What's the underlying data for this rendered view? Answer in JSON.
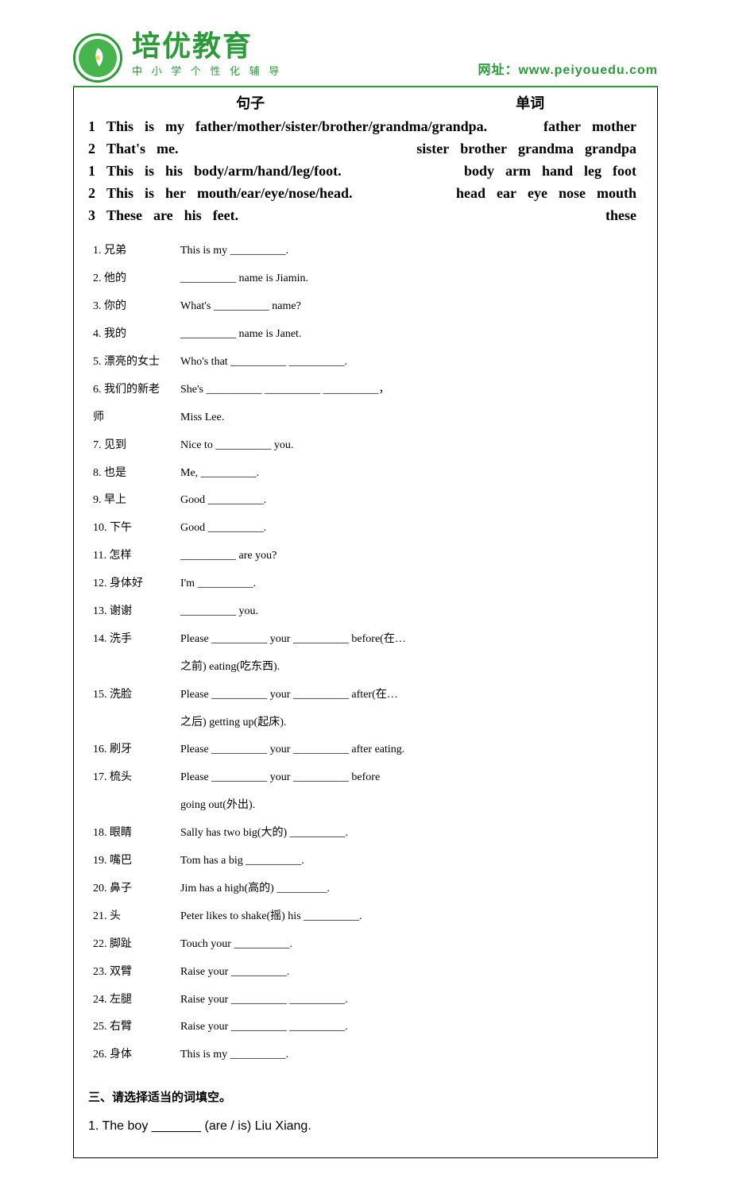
{
  "header": {
    "brand_name": "培优教育",
    "brand_sub": "中 小 学 个 性 化 辅 导",
    "url_label": "网址：",
    "url": "www.peiyouedu.com"
  },
  "columns": {
    "left": "句子",
    "right": "单词"
  },
  "sentences": [
    {
      "num": "1",
      "left": [
        "This",
        "is",
        "my",
        "father/mother/sister/brother/grandma/grandpa."
      ],
      "right": [
        "father",
        "mother"
      ]
    },
    {
      "num": "2",
      "left": [
        "That's",
        "me."
      ],
      "right": [
        "sister",
        "brother",
        "grandma",
        "grandpa"
      ]
    },
    {
      "num": "1",
      "left": [
        "This",
        "is",
        "his",
        "body/arm/hand/leg/foot."
      ],
      "right": [
        "body",
        "arm",
        "hand",
        "leg",
        "foot"
      ]
    },
    {
      "num": "2",
      "left": [
        "This",
        "is",
        "her",
        "mouth/ear/eye/nose/head."
      ],
      "right": [
        "head",
        "ear",
        "eye",
        "nose",
        "mouth"
      ]
    },
    {
      "num": "3",
      "left": [
        "These",
        "are",
        "his",
        "feet."
      ],
      "right": [
        "these"
      ]
    }
  ],
  "exercises": [
    {
      "n": "1.",
      "label": "兄弟",
      "text": "This is my __________."
    },
    {
      "n": "2.",
      "label": "他的",
      "text": "__________ name is Jiamin."
    },
    {
      "n": "3.",
      "label": "你的",
      "text": "What's __________ name?"
    },
    {
      "n": "4.",
      "label": "我的",
      "text": "__________ name is Janet."
    },
    {
      "n": "5.",
      "label": "漂亮的女士",
      "text": "Who's that __________  __________."
    },
    {
      "n": "6.",
      "label": "我们的新老",
      "text": "She's __________   __________   __________，",
      "cont_label": "师",
      "cont_text": "Miss Lee."
    },
    {
      "n": "7.",
      "label": "见到",
      "text": "Nice to __________ you."
    },
    {
      "n": "8.",
      "label": "也是",
      "text": "Me, __________."
    },
    {
      "n": "9.",
      "label": "早上",
      "text": "Good __________."
    },
    {
      "n": "10.",
      "label": "下午",
      "text": "Good __________."
    },
    {
      "n": "11.",
      "label": "怎样",
      "text": "__________ are you?"
    },
    {
      "n": "12.",
      "label": "身体好",
      "text": "I'm __________."
    },
    {
      "n": "13.",
      "label": "谢谢",
      "text": "__________ you."
    },
    {
      "n": "14.",
      "label": "洗手",
      "text": "Please __________ your __________ before(在…",
      "cont_label": "",
      "cont_text": "之前) eating(吃东西)."
    },
    {
      "n": "15.",
      "label": "洗脸",
      "text": "Please __________ your __________ after(在…",
      "cont_label": "",
      "cont_text": "之后) getting up(起床)."
    },
    {
      "n": "16.",
      "label": "刷牙",
      "text": "Please __________ your __________ after eating."
    },
    {
      "n": "17.",
      "label": "梳头",
      "text": "Please  __________  your __________  before",
      "cont_label": "",
      "cont_text": "going out(外出)."
    },
    {
      "n": "18.",
      "label": "眼睛",
      "text": "Sally has two big(大的) __________."
    },
    {
      "n": "19.",
      "label": "嘴巴",
      "text": "Tom has a big __________."
    },
    {
      "n": "20.",
      "label": "鼻子",
      "text": "Jim has a high(高的) _________."
    },
    {
      "n": "21.",
      "label": "头",
      "text": "Peter likes to shake(摇) his __________."
    },
    {
      "n": "22.",
      "label": "脚趾",
      "text": "Touch your __________."
    },
    {
      "n": "23.",
      "label": "双臂",
      "text": "Raise your __________."
    },
    {
      "n": "24.",
      "label": "左腿",
      "text": "Raise your __________ __________."
    },
    {
      "n": "25.",
      "label": "右臂",
      "text": "Raise your __________ __________."
    },
    {
      "n": "26.",
      "label": "身体",
      "text": "This is my __________."
    }
  ],
  "section3": {
    "title": "三、请选择适当的词填空。",
    "item1": "1. The boy _______ (are / is) Liu Xiang."
  },
  "colors": {
    "brand_green": "#2b9b3a",
    "text": "#000000",
    "bg": "#ffffff"
  }
}
